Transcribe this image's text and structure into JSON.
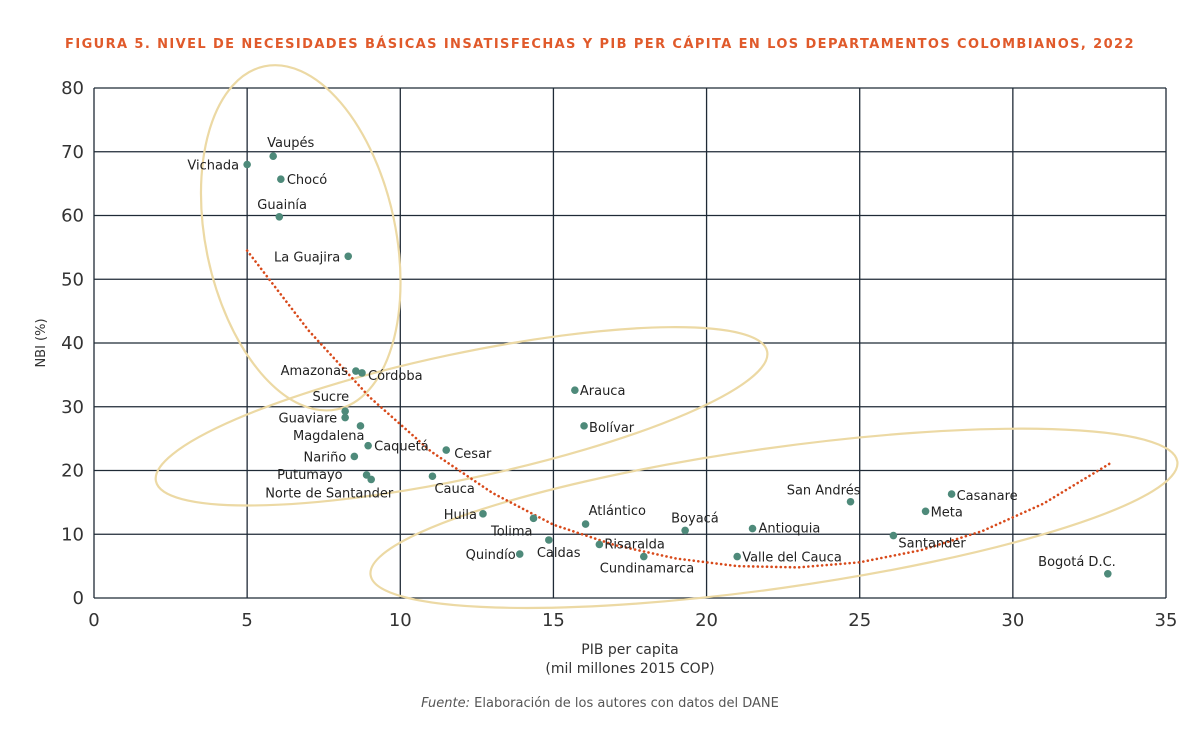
{
  "title": "FIGURA 5. NIVEL DE NECESIDADES BÁSICAS INSATISFECHAS Y PIB PER CÁPITA EN LOS DEPARTAMENTOS COLOMBIANOS, 2022",
  "source": {
    "prefix": "Fuente:",
    "text": " Elaboración de los autores con datos del DANE"
  },
  "colors": {
    "points": "#4e8a7a",
    "trend": "#d84a1b",
    "ellipse": "#ecd9a4",
    "grid": "#1f2a36",
    "title": "#e05a2b"
  },
  "chart_data": {
    "type": "scatter",
    "xlabel_lines": [
      "PIB per capita",
      "(mil millones 2015 COP)"
    ],
    "ylabel": "NBI (%)",
    "xlim": [
      0,
      35
    ],
    "ylim": [
      0,
      80
    ],
    "xticks": [
      0,
      5,
      10,
      15,
      20,
      25,
      30,
      35
    ],
    "yticks": [
      0,
      10,
      20,
      30,
      40,
      50,
      60,
      70,
      80
    ],
    "grid": true,
    "points": [
      {
        "name": "Vichada",
        "x": 5.0,
        "y": 68.0
      },
      {
        "name": "Vaupés",
        "x": 5.85,
        "y": 69.3
      },
      {
        "name": "Chocó",
        "x": 6.1,
        "y": 65.7
      },
      {
        "name": "Guainía",
        "x": 6.05,
        "y": 59.8
      },
      {
        "name": "La Guajira",
        "x": 8.3,
        "y": 53.6
      },
      {
        "name": "Amazonas",
        "x": 8.55,
        "y": 35.6
      },
      {
        "name": "Córdoba",
        "x": 8.75,
        "y": 35.3
      },
      {
        "name": "Arauca",
        "x": 15.7,
        "y": 32.6
      },
      {
        "name": "Sucre",
        "x": 8.2,
        "y": 29.3
      },
      {
        "name": "Guaviare",
        "x": 8.2,
        "y": 28.3
      },
      {
        "name": "Bolívar",
        "x": 16.0,
        "y": 27.0
      },
      {
        "name": "Magdalena",
        "x": 8.7,
        "y": 27.0
      },
      {
        "name": "Caquetá",
        "x": 8.95,
        "y": 23.9
      },
      {
        "name": "Cesar",
        "x": 11.5,
        "y": 23.2
      },
      {
        "name": "Nariño",
        "x": 8.5,
        "y": 22.2
      },
      {
        "name": "Putumayo",
        "x": 8.9,
        "y": 19.3
      },
      {
        "name": "Norte de Santander",
        "x": 9.05,
        "y": 18.6
      },
      {
        "name": "Cauca",
        "x": 11.05,
        "y": 19.1
      },
      {
        "name": "Huila",
        "x": 12.7,
        "y": 13.2
      },
      {
        "name": "Tolima",
        "x": 14.35,
        "y": 12.5
      },
      {
        "name": "Atlántico",
        "x": 16.05,
        "y": 11.6
      },
      {
        "name": "Boyacá",
        "x": 19.3,
        "y": 10.6
      },
      {
        "name": "Antioquia",
        "x": 21.5,
        "y": 10.9
      },
      {
        "name": "San Andrés",
        "x": 24.7,
        "y": 15.1
      },
      {
        "name": "Casanare",
        "x": 28.0,
        "y": 16.3
      },
      {
        "name": "Meta",
        "x": 27.15,
        "y": 13.6
      },
      {
        "name": "Santander",
        "x": 26.1,
        "y": 9.8
      },
      {
        "name": "Caldas",
        "x": 14.85,
        "y": 9.1
      },
      {
        "name": "Quindío",
        "x": 13.9,
        "y": 6.9
      },
      {
        "name": "Risaralda",
        "x": 16.5,
        "y": 8.4
      },
      {
        "name": "Cundinamarca",
        "x": 17.95,
        "y": 6.5
      },
      {
        "name": "Valle del Cauca",
        "x": 21.0,
        "y": 6.5
      },
      {
        "name": "Bogotá D.C.",
        "x": 33.1,
        "y": 3.8
      }
    ],
    "trendline": {
      "type": "polynomial",
      "samples_x": [
        5,
        7,
        9,
        11,
        13,
        15,
        17,
        19,
        21,
        23,
        25,
        27,
        29,
        31,
        33.2
      ],
      "samples_y": [
        54.5,
        42.0,
        31.5,
        23.0,
        16.5,
        11.5,
        8.3,
        6.2,
        5.0,
        4.8,
        5.6,
        7.5,
        10.5,
        14.8,
        21.2
      ]
    },
    "cluster_ellipses": [
      {
        "cx": 6.75,
        "cy": 56.5,
        "rx": 3.1,
        "ry": 27.5,
        "rotate": -12
      },
      {
        "cx": 12.0,
        "cy": 28.5,
        "rx": 10.2,
        "ry": 9.8,
        "rotate": -12
      },
      {
        "cx": 22.2,
        "cy": 12.5,
        "rx": 13.3,
        "ry": 11.0,
        "rotate": -8
      }
    ]
  }
}
